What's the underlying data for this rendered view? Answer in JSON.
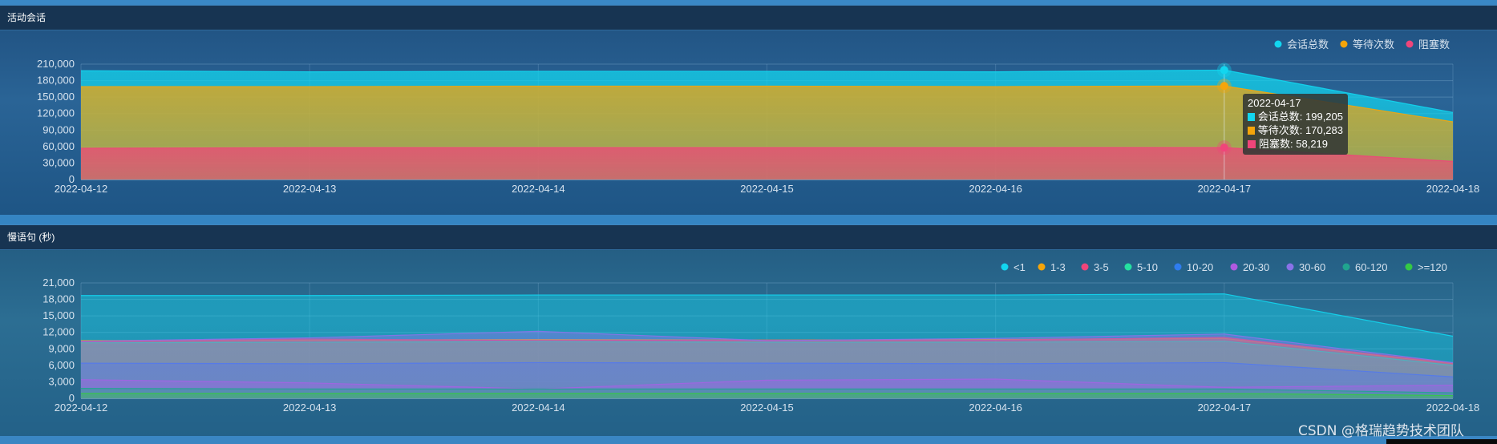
{
  "panels": [
    {
      "title": "活动会话"
    },
    {
      "title": "慢语句 (秒)"
    }
  ],
  "watermark": "CSDN @格瑞趋势技术团队",
  "tooltip": {
    "date": "2022-04-17",
    "rows": [
      {
        "label": "会话总数",
        "value": "199,205",
        "color": "#12d6ef"
      },
      {
        "label": "等待次数",
        "value": "170,283",
        "color": "#f5a50a"
      },
      {
        "label": "阻塞数",
        "value": "58,219",
        "color": "#f0457a"
      }
    ]
  },
  "chart_data": [
    {
      "type": "area",
      "title": "活动会话",
      "x": [
        "2022-04-12",
        "2022-04-13",
        "2022-04-14",
        "2022-04-15",
        "2022-04-16",
        "2022-04-17",
        "2022-04-18"
      ],
      "ylim": [
        0,
        210000
      ],
      "yticks": [
        0,
        30000,
        60000,
        90000,
        120000,
        150000,
        180000,
        210000
      ],
      "ytick_labels": [
        "0",
        "30,000",
        "60,000",
        "90,000",
        "120,000",
        "150,000",
        "180,000",
        "210,000"
      ],
      "grid": true,
      "legend": "top-right",
      "stacked": false,
      "series": [
        {
          "name": "会话总数",
          "color": "#12d6ef",
          "values": [
            198000,
            196000,
            197000,
            197000,
            196000,
            199205,
            122000
          ]
        },
        {
          "name": "等待次数",
          "color": "#f5a50a",
          "values": [
            169000,
            169000,
            170000,
            170000,
            169000,
            170283,
            105000
          ]
        },
        {
          "name": "阻塞数",
          "color": "#f0457a",
          "values": [
            57000,
            58000,
            58000,
            58000,
            58000,
            58219,
            33000
          ]
        }
      ]
    },
    {
      "type": "area",
      "title": "慢语句 (秒)",
      "x": [
        "2022-04-12",
        "2022-04-13",
        "2022-04-14",
        "2022-04-15",
        "2022-04-16",
        "2022-04-17",
        "2022-04-18"
      ],
      "ylim": [
        0,
        21000
      ],
      "yticks": [
        0,
        3000,
        6000,
        9000,
        12000,
        15000,
        18000,
        21000
      ],
      "ytick_labels": [
        "0",
        "3,000",
        "6,000",
        "9,000",
        "12,000",
        "15,000",
        "18,000",
        "21,000"
      ],
      "grid": true,
      "legend": "top-right",
      "stacked": false,
      "series": [
        {
          "name": "<1",
          "color": "#12d6ef",
          "values": [
            18700,
            18700,
            18800,
            18800,
            18800,
            19000,
            11300
          ]
        },
        {
          "name": "1-3",
          "color": "#f5a50a",
          "values": [
            10500,
            10600,
            10700,
            10600,
            10700,
            10900,
            6300
          ]
        },
        {
          "name": "3-5",
          "color": "#f0457a",
          "values": [
            10300,
            10800,
            10500,
            10600,
            10600,
            11100,
            6400
          ]
        },
        {
          "name": "5-10",
          "color": "#25e0a0",
          "values": [
            10100,
            10200,
            10300,
            10200,
            10200,
            10400,
            6000
          ]
        },
        {
          "name": "10-20",
          "color": "#2f7df0",
          "values": [
            6400,
            6300,
            6500,
            6400,
            6300,
            6500,
            3900
          ]
        },
        {
          "name": "20-30",
          "color": "#b05ae0",
          "values": [
            3400,
            2800,
            1700,
            3300,
            3500,
            2000,
            2400
          ]
        },
        {
          "name": "30-60",
          "color": "#8a72e8",
          "values": [
            10400,
            11000,
            12200,
            10500,
            10900,
            11700,
            6500
          ]
        },
        {
          "name": "60-120",
          "color": "#20a58f",
          "values": [
            1800,
            1700,
            1700,
            1700,
            1700,
            1700,
            1000
          ]
        },
        {
          "name": ">=120",
          "color": "#35c944",
          "values": [
            900,
            900,
            900,
            900,
            900,
            900,
            500
          ]
        }
      ]
    }
  ]
}
